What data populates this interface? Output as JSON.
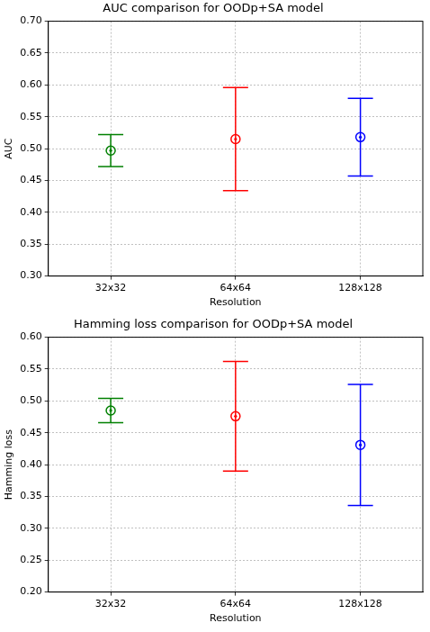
{
  "chart_data": [
    {
      "type": "errorbar",
      "title": "AUC comparison for OODp+SA model",
      "x_label": "Resolution",
      "y_label": "AUC",
      "categories": [
        "32x32",
        "64x64",
        "128x128"
      ],
      "values": [
        0.497,
        0.515,
        0.518
      ],
      "errors": [
        0.025,
        0.081,
        0.061
      ],
      "colors": [
        "#008000",
        "#ff0000",
        "#0000ff"
      ],
      "marker": "o",
      "ylim": [
        0.3,
        0.7
      ],
      "yticks": [
        {
          "value": 0.3,
          "label": "0.30"
        },
        {
          "value": 0.35,
          "label": "0.35"
        },
        {
          "value": 0.4,
          "label": "0.40"
        },
        {
          "value": 0.45,
          "label": "0.45"
        },
        {
          "value": 0.5,
          "label": "0.50"
        },
        {
          "value": 0.55,
          "label": "0.55"
        },
        {
          "value": 0.6,
          "label": "0.60"
        },
        {
          "value": 0.65,
          "label": "0.65"
        },
        {
          "value": 0.7,
          "label": "0.70"
        }
      ],
      "grid": true
    },
    {
      "type": "errorbar",
      "title": "Hamming loss comparison for OODp+SA model",
      "x_label": "Resolution",
      "y_label": "Hamming loss",
      "categories": [
        "32x32",
        "64x64",
        "128x128"
      ],
      "values": [
        0.485,
        0.476,
        0.431
      ],
      "errors": [
        0.019,
        0.086,
        0.095
      ],
      "colors": [
        "#008000",
        "#ff0000",
        "#0000ff"
      ],
      "marker": "o",
      "ylim": [
        0.2,
        0.6
      ],
      "yticks": [
        {
          "value": 0.2,
          "label": "0.20"
        },
        {
          "value": 0.25,
          "label": "0.25"
        },
        {
          "value": 0.3,
          "label": "0.30"
        },
        {
          "value": 0.35,
          "label": "0.35"
        },
        {
          "value": 0.4,
          "label": "0.40"
        },
        {
          "value": 0.45,
          "label": "0.45"
        },
        {
          "value": 0.5,
          "label": "0.50"
        },
        {
          "value": 0.55,
          "label": "0.55"
        },
        {
          "value": 0.6,
          "label": "0.60"
        }
      ],
      "grid": true
    }
  ]
}
